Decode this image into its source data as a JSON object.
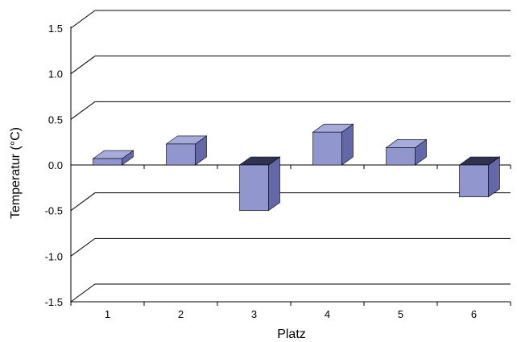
{
  "chart_data": {
    "type": "bar",
    "title": "",
    "xlabel": "Platz",
    "ylabel": "Temperatur (°C)",
    "categories": [
      "1",
      "2",
      "3",
      "4",
      "5",
      "6"
    ],
    "values": [
      0.07,
      0.23,
      -0.5,
      0.36,
      0.19,
      -0.35
    ],
    "ylim": [
      -1.5,
      1.5
    ],
    "yticks": [
      "1.5",
      "1.0",
      "0.5",
      "0.0",
      "-0.5",
      "-1.0",
      "-1.5"
    ],
    "grid": true,
    "legend": "none",
    "style": "3d",
    "colors": {
      "bar_front": "#9197ce",
      "bar_top_pos": "#a6abdb",
      "bar_side": "#6468a8",
      "bar_top_neg": "#303251",
      "gridline": "#000000"
    }
  }
}
